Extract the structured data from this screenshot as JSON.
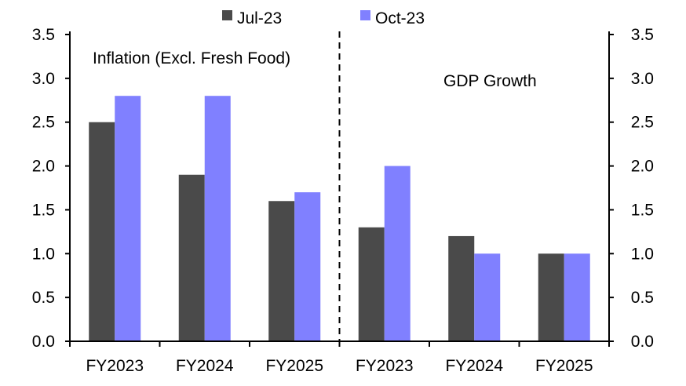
{
  "chart_data": {
    "type": "bar",
    "categories": [
      "FY2023",
      "FY2024",
      "FY2025",
      "FY2023",
      "FY2024",
      "FY2025"
    ],
    "panels": [
      {
        "label": "Inflation (Excl. Fresh Food)",
        "categories": [
          "FY2023",
          "FY2024",
          "FY2025"
        ]
      },
      {
        "label": "GDP Growth",
        "categories": [
          "FY2023",
          "FY2024",
          "FY2025"
        ]
      }
    ],
    "series": [
      {
        "name": "Jul-23",
        "color": "#4a4a4a",
        "values": [
          2.5,
          1.9,
          1.6,
          1.3,
          1.2,
          1.0
        ]
      },
      {
        "name": "Oct-23",
        "color": "#8080ff",
        "values": [
          2.8,
          2.8,
          1.7,
          2.0,
          1.0,
          1.0
        ]
      }
    ],
    "ylim": [
      0,
      3.5
    ],
    "yticks": [
      "0.0",
      "0.5",
      "1.0",
      "1.5",
      "2.0",
      "2.5",
      "3.0",
      "3.5"
    ],
    "secondary_yticks": [
      "0.0",
      "0.5",
      "1.0",
      "1.5",
      "2.0",
      "2.5",
      "3.0",
      "3.5"
    ],
    "legend_position": "top",
    "grid": false,
    "xlabel": "",
    "ylabel": ""
  }
}
